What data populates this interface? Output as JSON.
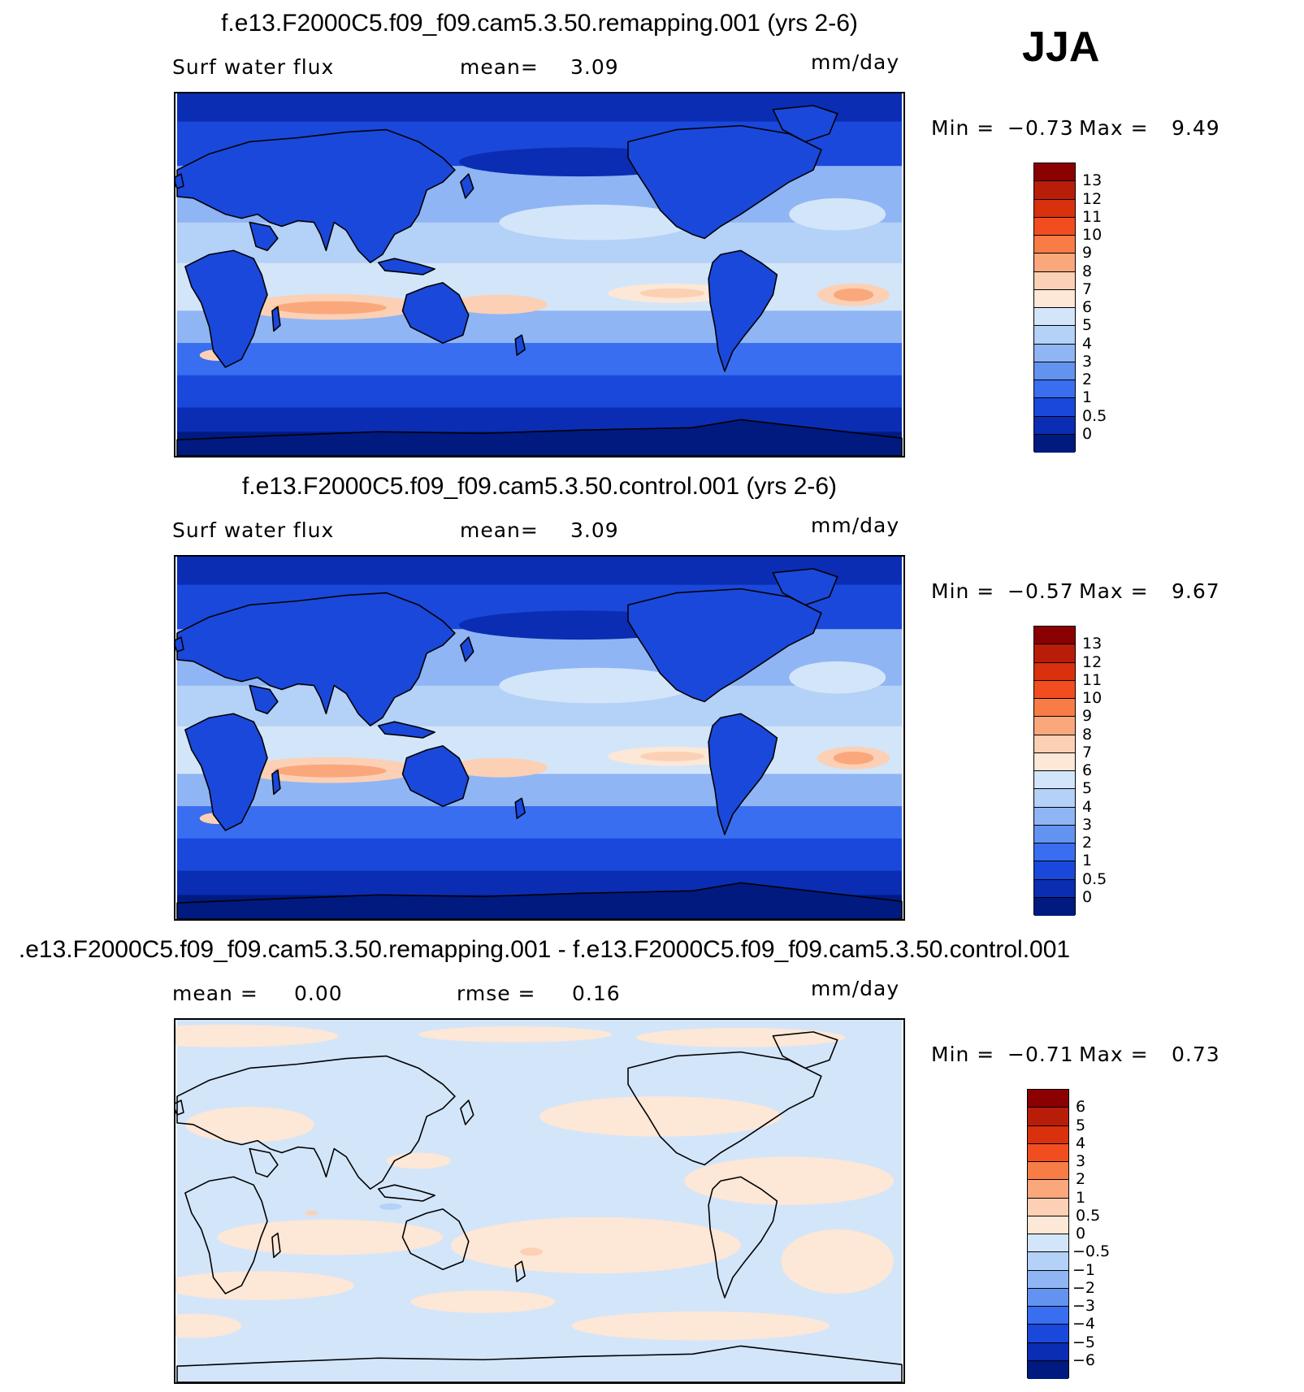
{
  "season": "JJA",
  "panels": [
    {
      "title": "f.e13.F2000C5.f09_f09.cam5.3.50.remapping.001 (yrs 2-6)",
      "variable": "Surf water flux",
      "stat_label": "mean=",
      "stat_value": "3.09",
      "units": "mm/day",
      "min_label": "Min =",
      "min_value": "−0.73",
      "max_label": "Max =",
      "max_value": "9.49",
      "colorbar_labels": [
        "13",
        "12",
        "11",
        "10",
        "9",
        "8",
        "7",
        "6",
        "5",
        "4",
        "3",
        "2",
        "1",
        "0.5",
        "0"
      ]
    },
    {
      "title": "f.e13.F2000C5.f09_f09.cam5.3.50.control.001 (yrs 2-6)",
      "variable": "Surf water flux",
      "stat_label": "mean=",
      "stat_value": "3.09",
      "units": "mm/day",
      "min_label": "Min =",
      "min_value": "−0.57",
      "max_label": "Max =",
      "max_value": "9.67",
      "colorbar_labels": [
        "13",
        "12",
        "11",
        "10",
        "9",
        "8",
        "7",
        "6",
        "5",
        "4",
        "3",
        "2",
        "1",
        "0.5",
        "0"
      ]
    },
    {
      "title": ".e13.F2000C5.f09_f09.cam5.3.50.remapping.001 - f.e13.F2000C5.f09_f09.cam5.3.50.control.001",
      "mean_label": "mean =",
      "mean_value": "0.00",
      "stat_label": "rmse =",
      "stat_value": "0.16",
      "units": "mm/day",
      "min_label": "Min =",
      "min_value": "−0.71",
      "max_label": "Max =",
      "max_value": "0.73",
      "colorbar_labels": [
        "6",
        "5",
        "4",
        "3",
        "2",
        "1",
        "0.5",
        "0",
        "−0.5",
        "−1",
        "−2",
        "−3",
        "−4",
        "−5",
        "−6"
      ]
    }
  ],
  "colorbar_colors": [
    "#8b0000",
    "#b81d0a",
    "#d9300d",
    "#f24d1f",
    "#f77c45",
    "#fba77c",
    "#fcd0b4",
    "#fde7d7",
    "#d3e5f9",
    "#b4d1f7",
    "#8fb5f4",
    "#6393f0",
    "#3a6ef0",
    "#1a48db",
    "#0a2db3",
    "#001a80"
  ],
  "map_colors": {
    "deep": "#001a80",
    "dark": "#0a2db3",
    "mid": "#1a48db",
    "mid2": "#3a6ef0",
    "light": "#8fb5f4",
    "lighter": "#b4d1f7",
    "pale": "#d3e5f9",
    "warm": "#fde7d7",
    "warm2": "#fcd0b4",
    "hot": "#fba77c",
    "coast": "#000000"
  }
}
